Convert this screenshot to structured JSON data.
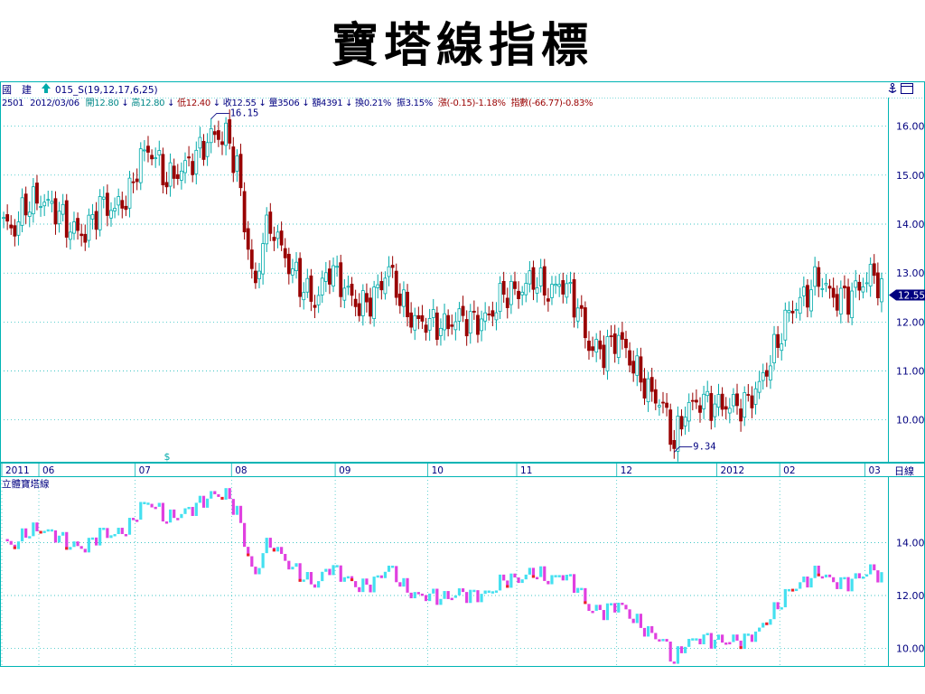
{
  "slide": {
    "title": "寶塔線指標"
  },
  "header": {
    "stock_name": "國　建",
    "indicator_label": "015_S(19,12,17,6,25)",
    "icons": {
      "up_arrow": "up-arrow-icon",
      "anchor": "anchor-icon",
      "window": "window-icon"
    },
    "code": "2501",
    "date": "2012/03/06",
    "open_label": "開12.80",
    "high_label": "高12.80",
    "low_label": "低12.40",
    "close_label": "收12.55",
    "volume_label": "量3506",
    "amount_label": "額4391",
    "turnover_label": "換0.21%",
    "amplitude_label": "振3.15%",
    "change_label": "漲(-0.15)-1.18%",
    "index_label": "指數(-66.77)-0.83%"
  },
  "colors": {
    "up": "#00aaaa",
    "down": "#990000",
    "pagoda_up": "#44e0f0",
    "pagoda_down": "#e040e0",
    "pagoda_red": "#ee2222",
    "grid": "#00b4b4",
    "header_up": "#008888",
    "header_down": "#990000"
  },
  "chart_data": [
    {
      "type": "candlestick",
      "price_range": [
        9.2,
        16.4
      ],
      "y_ticks": [
        "16.00",
        "15.00",
        "14.00",
        "13.00",
        "12.00",
        "11.00",
        "10.00"
      ],
      "y_tick_values": [
        16,
        15,
        14,
        13,
        12,
        11,
        10
      ],
      "current_price_label": "12.55",
      "current_price": 12.55,
      "annotations": [
        {
          "text": "16.15",
          "value": 16.15,
          "index": 56
        },
        {
          "text": "9.34",
          "value": 9.34,
          "index": 181
        }
      ],
      "x_axis_labels": [
        {
          "text": "2011",
          "index": 0
        },
        {
          "text": "06",
          "index": 10
        },
        {
          "text": "07",
          "index": 36
        },
        {
          "text": "08",
          "index": 62
        },
        {
          "text": "09",
          "index": 90
        },
        {
          "text": "10",
          "index": 115
        },
        {
          "text": "11",
          "index": 139
        },
        {
          "text": "12",
          "index": 166
        },
        {
          "text": "2012",
          "index": 193
        },
        {
          "text": "02",
          "index": 210
        },
        {
          "text": "03",
          "index": 233
        }
      ],
      "marker": {
        "text": "$",
        "index": 44
      },
      "period_label": "日線",
      "keyframes": [
        [
          0,
          14.0
        ],
        [
          3,
          13.9
        ],
        [
          6,
          14.4
        ],
        [
          10,
          14.5
        ],
        [
          14,
          14.3
        ],
        [
          18,
          13.9
        ],
        [
          22,
          13.8
        ],
        [
          26,
          14.4
        ],
        [
          30,
          14.3
        ],
        [
          34,
          14.6
        ],
        [
          37,
          15.4
        ],
        [
          40,
          15.5
        ],
        [
          44,
          14.9
        ],
        [
          48,
          15.1
        ],
        [
          52,
          15.4
        ],
        [
          56,
          15.8
        ],
        [
          60,
          15.8
        ],
        [
          63,
          15.2
        ],
        [
          65,
          14.0
        ],
        [
          68,
          12.6
        ],
        [
          70,
          13.8
        ],
        [
          73,
          13.9
        ],
        [
          76,
          13.3
        ],
        [
          80,
          12.8
        ],
        [
          84,
          12.4
        ],
        [
          88,
          13.1
        ],
        [
          92,
          12.7
        ],
        [
          96,
          12.3
        ],
        [
          100,
          12.5
        ],
        [
          104,
          13.1
        ],
        [
          108,
          12.3
        ],
        [
          111,
          12.0
        ],
        [
          115,
          12.0
        ],
        [
          119,
          11.9
        ],
        [
          123,
          12.1
        ],
        [
          127,
          12.0
        ],
        [
          131,
          12.1
        ],
        [
          135,
          12.6
        ],
        [
          139,
          12.6
        ],
        [
          143,
          12.9
        ],
        [
          147,
          12.6
        ],
        [
          151,
          12.8
        ],
        [
          155,
          12.3
        ],
        [
          158,
          11.5
        ],
        [
          162,
          11.4
        ],
        [
          166,
          11.7
        ],
        [
          170,
          11.1
        ],
        [
          174,
          10.6
        ],
        [
          178,
          10.3
        ],
        [
          181,
          9.5
        ],
        [
          184,
          10.2
        ],
        [
          188,
          10.4
        ],
        [
          192,
          10.3
        ],
        [
          196,
          10.3
        ],
        [
          200,
          10.3
        ],
        [
          204,
          10.7
        ],
        [
          208,
          11.4
        ],
        [
          212,
          12.2
        ],
        [
          216,
          12.5
        ],
        [
          220,
          12.9
        ],
        [
          224,
          12.5
        ],
        [
          228,
          12.5
        ],
        [
          232,
          12.8
        ],
        [
          235,
          13.0
        ],
        [
          237,
          12.6
        ]
      ],
      "count": 238
    },
    {
      "type": "pagoda",
      "title": "立體寶塔線",
      "y_range": [
        9.4,
        16.0
      ],
      "y_ticks": [
        "14.00",
        "12.00",
        "10.00"
      ],
      "y_tick_values": [
        14,
        12,
        10
      ]
    }
  ]
}
